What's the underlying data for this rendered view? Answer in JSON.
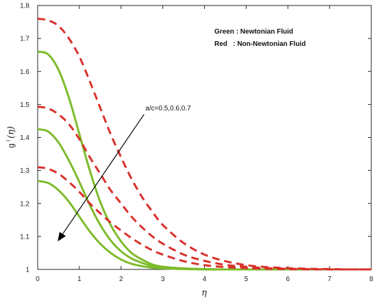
{
  "chart_data": {
    "type": "line",
    "title": "",
    "xlabel": "η",
    "ylabel_main": "g",
    "ylabel_super": "I",
    "ylabel_arg": "(η)",
    "xlim": [
      0,
      8
    ],
    "ylim": [
      1,
      1.8
    ],
    "xticks": [
      "0",
      "1",
      "2",
      "3",
      "4",
      "5",
      "6",
      "7",
      "8"
    ],
    "yticks": [
      "1",
      "1.1",
      "1.2",
      "1.3",
      "1.4",
      "1.5",
      "1.6",
      "1.7",
      "1.8"
    ],
    "grid": false,
    "legend": {
      "placement": "top-right",
      "entries": [
        {
          "label": "Green : Newtonian Fluid",
          "color": "#7dbb2a"
        },
        {
          "label": "Red   : Non-Newtonian Fluid",
          "color": "#d9302c"
        }
      ]
    },
    "annotation": {
      "text": "a/c=0.5,0.6,0.7",
      "arrow_from": [
        2.55,
        1.47
      ],
      "arrow_to": [
        0.48,
        1.085
      ]
    },
    "series": [
      {
        "group": "Newtonian",
        "style": "solid",
        "color": "#7dbb2a",
        "x": [
          0,
          0.25,
          0.5,
          0.75,
          1,
          1.25,
          1.5,
          1.75,
          2,
          2.25,
          2.5,
          2.75,
          3,
          3.5,
          4,
          4.5,
          5,
          6,
          7,
          8
        ],
        "y": [
          1.66,
          1.652,
          1.605,
          1.52,
          1.41,
          1.3,
          1.205,
          1.135,
          1.085,
          1.05,
          1.03,
          1.015,
          1.008,
          1.003,
          1.001,
          1.0,
          1.0,
          1.0,
          1.0,
          1.0
        ]
      },
      {
        "group": "Newtonian",
        "style": "solid",
        "color": "#7dbb2a",
        "x": [
          0,
          0.25,
          0.5,
          0.75,
          1,
          1.25,
          1.5,
          1.75,
          2,
          2.25,
          2.5,
          2.75,
          3,
          3.5,
          4,
          4.5,
          5,
          6,
          7,
          8
        ],
        "y": [
          1.425,
          1.418,
          1.385,
          1.33,
          1.265,
          1.195,
          1.135,
          1.088,
          1.055,
          1.033,
          1.02,
          1.01,
          1.005,
          1.002,
          1.0,
          1.0,
          1.0,
          1.0,
          1.0,
          1.0
        ]
      },
      {
        "group": "Newtonian",
        "style": "solid",
        "color": "#7dbb2a",
        "x": [
          0,
          0.25,
          0.5,
          0.75,
          1,
          1.25,
          1.5,
          1.75,
          2,
          2.25,
          2.5,
          2.75,
          3,
          3.5,
          4,
          4.5,
          5,
          6,
          7,
          8
        ],
        "y": [
          1.268,
          1.262,
          1.24,
          1.205,
          1.16,
          1.115,
          1.078,
          1.05,
          1.03,
          1.017,
          1.01,
          1.005,
          1.003,
          1.001,
          1.0,
          1.0,
          1.0,
          1.0,
          1.0,
          1.0
        ]
      },
      {
        "group": "Non-Newtonian",
        "style": "dashed",
        "color": "#d9302c",
        "x": [
          0,
          0.25,
          0.5,
          0.75,
          1,
          1.25,
          1.5,
          1.75,
          2,
          2.25,
          2.5,
          2.75,
          3,
          3.5,
          4,
          4.5,
          5,
          5.5,
          6,
          6.5,
          7,
          7.5,
          8
        ],
        "y": [
          1.76,
          1.755,
          1.738,
          1.7,
          1.645,
          1.57,
          1.49,
          1.41,
          1.34,
          1.275,
          1.22,
          1.175,
          1.135,
          1.08,
          1.045,
          1.025,
          1.013,
          1.007,
          1.004,
          1.002,
          1.001,
          1.0,
          1.0
        ]
      },
      {
        "group": "Non-Newtonian",
        "style": "dashed",
        "color": "#d9302c",
        "x": [
          0,
          0.25,
          0.5,
          0.75,
          1,
          1.25,
          1.5,
          1.75,
          2,
          2.25,
          2.5,
          2.75,
          3,
          3.5,
          4,
          4.5,
          5,
          5.5,
          6,
          6.5,
          7,
          7.5,
          8
        ],
        "y": [
          1.493,
          1.488,
          1.47,
          1.44,
          1.395,
          1.34,
          1.29,
          1.24,
          1.2,
          1.16,
          1.128,
          1.1,
          1.078,
          1.045,
          1.026,
          1.014,
          1.008,
          1.004,
          1.002,
          1.001,
          1.0,
          1.0,
          1.0
        ]
      },
      {
        "group": "Non-Newtonian",
        "style": "dashed",
        "color": "#d9302c",
        "x": [
          0,
          0.25,
          0.5,
          0.75,
          1,
          1.25,
          1.5,
          1.75,
          2,
          2.25,
          2.5,
          2.75,
          3,
          3.5,
          4,
          4.5,
          5,
          5.5,
          6,
          6.5,
          7,
          7.5,
          8
        ],
        "y": [
          1.31,
          1.305,
          1.29,
          1.265,
          1.235,
          1.2,
          1.17,
          1.142,
          1.118,
          1.095,
          1.075,
          1.058,
          1.045,
          1.025,
          1.013,
          1.007,
          1.004,
          1.002,
          1.001,
          1.0,
          1.0,
          1.0,
          1.0
        ]
      }
    ]
  }
}
